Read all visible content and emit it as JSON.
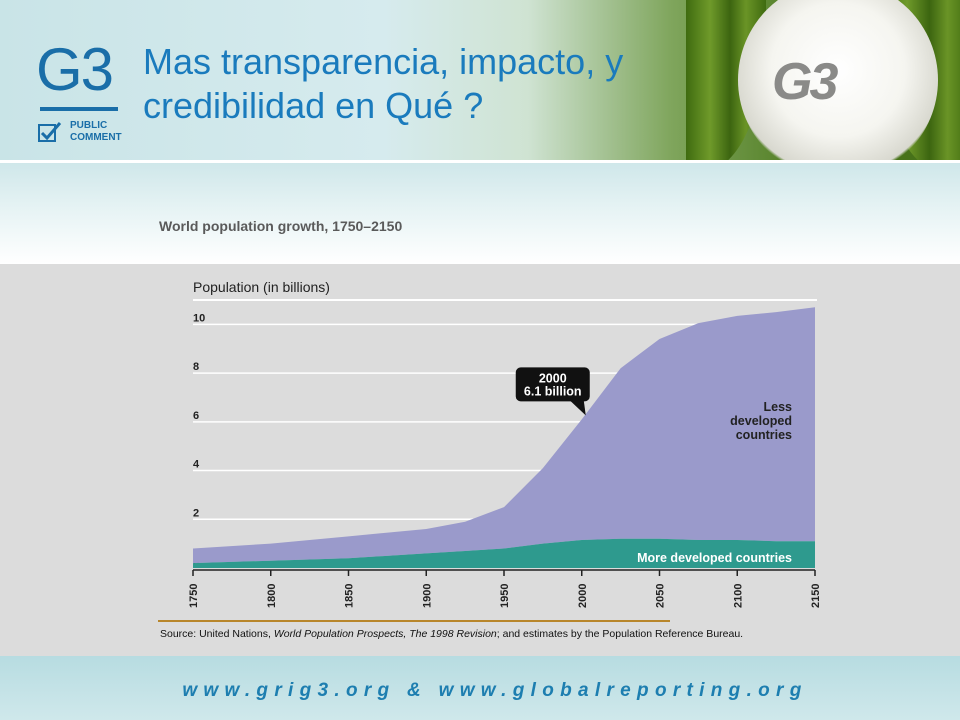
{
  "slide": {
    "title": "Mas transparencia, impacto, y credibilidad en Qué ?",
    "logo": {
      "text": "G3",
      "sub_line1": "PUBLIC",
      "sub_line2": "COMMENT"
    },
    "stage_logo": "G3",
    "footer": "www.grig3.org & www.globalreporting.org",
    "source_prefix": "Source: United Nations, ",
    "source_italic": "World Population Prospects, The 1998 Revision",
    "source_suffix": "; and estimates by the Population Reference Bureau.",
    "colors": {
      "title": "#1a7bbd",
      "less_developed": "#9a9acb",
      "more_developed": "#2e9a8e",
      "gray_panel": "#dcdcdc"
    }
  },
  "chart_data": {
    "type": "area",
    "title": "World population growth, 1750–2150",
    "ylabel": "Population (in billions)",
    "ylim": [
      0,
      11
    ],
    "yticks": [
      0,
      2,
      4,
      6,
      8,
      10
    ],
    "xlim": [
      1750,
      2150
    ],
    "xticks": [
      1750,
      1800,
      1850,
      1900,
      1950,
      2000,
      2050,
      2100,
      2150
    ],
    "x": [
      1750,
      1800,
      1850,
      1900,
      1925,
      1950,
      1975,
      2000,
      2025,
      2050,
      2075,
      2100,
      2125,
      2150
    ],
    "series": [
      {
        "name": "More developed countries",
        "values": [
          0.2,
          0.3,
          0.4,
          0.6,
          0.7,
          0.8,
          1.0,
          1.15,
          1.2,
          1.2,
          1.15,
          1.15,
          1.1,
          1.1
        ]
      },
      {
        "name": "Less developed countries",
        "values": [
          0.6,
          0.7,
          0.9,
          1.0,
          1.2,
          1.7,
          3.1,
          4.95,
          7.0,
          8.2,
          8.9,
          9.2,
          9.4,
          9.6
        ]
      }
    ],
    "annotation": {
      "line1": "2000",
      "line2": "6.1 billion",
      "x": 2000,
      "y": 6.1
    }
  }
}
